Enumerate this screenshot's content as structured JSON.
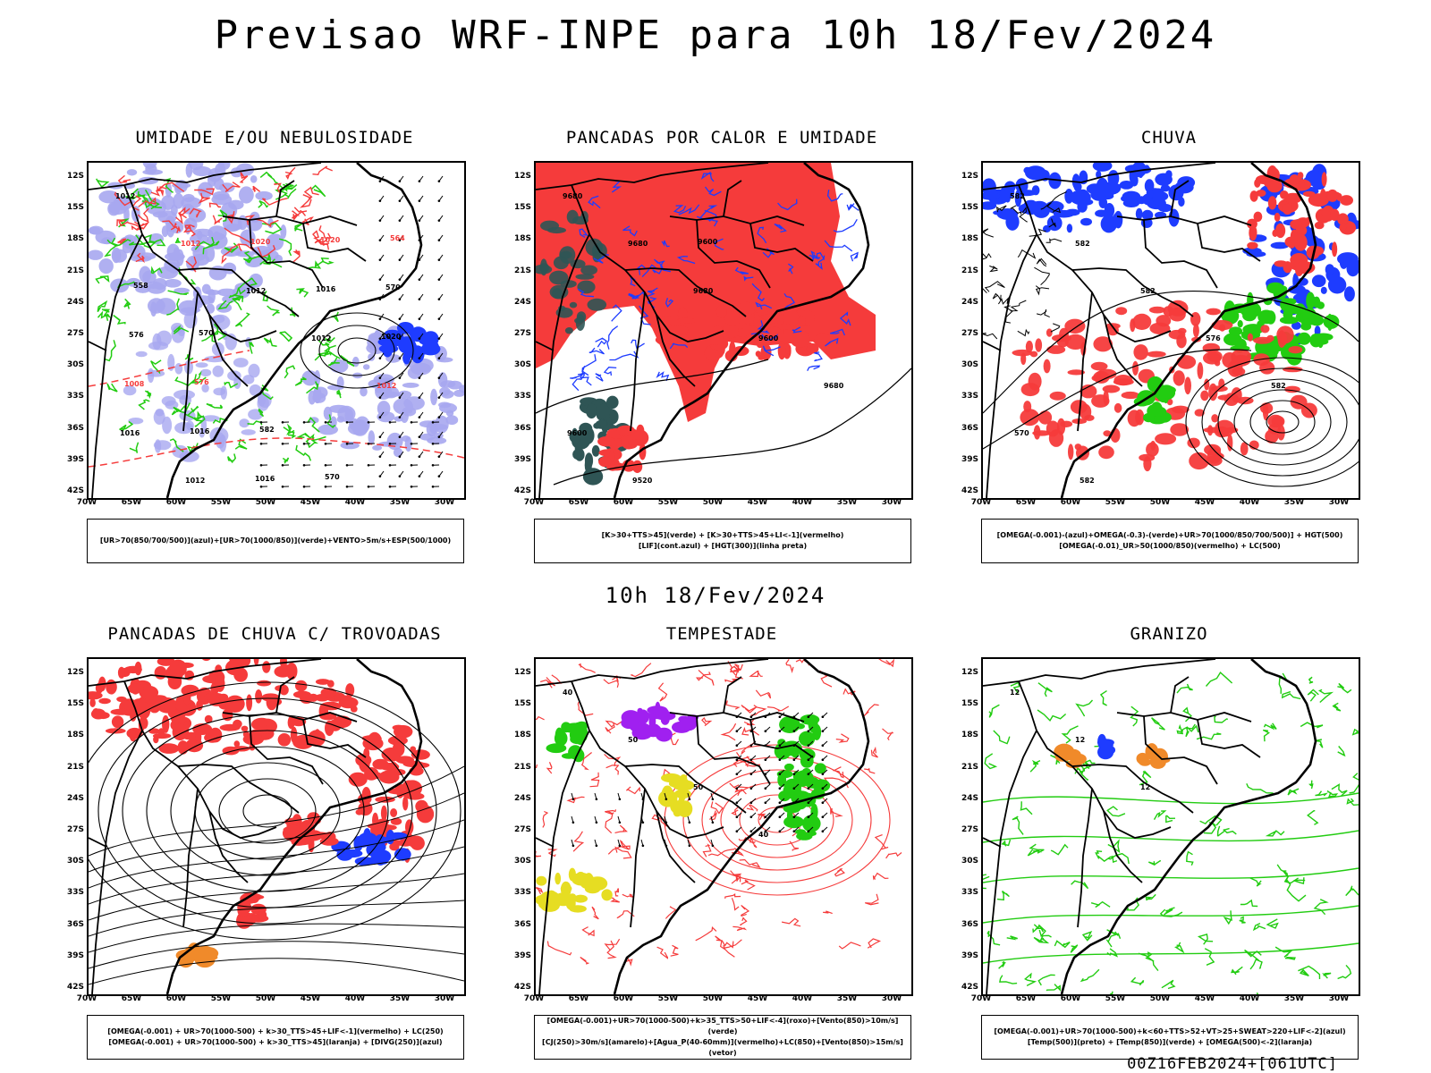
{
  "header": {
    "title": "Previsao WRF-INPE  para 10h 18/Fev/2024"
  },
  "middle_time": "10h 18/Fev/2024",
  "footer": "00Z16FEB2024+[061UTC]",
  "axes": {
    "lat_labels": [
      "12S",
      "15S",
      "18S",
      "21S",
      "24S",
      "27S",
      "30S",
      "33S",
      "36S",
      "39S",
      "42S"
    ],
    "lon_labels": [
      "70W",
      "65W",
      "60W",
      "55W",
      "50W",
      "45W",
      "40W",
      "35W",
      "30W"
    ]
  },
  "colors": {
    "blue": "#1e3cff",
    "lilac": "#a7a7f0",
    "green": "#22cc11",
    "red": "#f53b3b",
    "dark_teal": "#2f5555",
    "yellow": "#e6dd22",
    "purple": "#a020f0",
    "orange": "#f08a2a"
  },
  "panels": [
    {
      "title": "UMIDADE E/OU NEBULOSIDADE",
      "legend": [
        "[UR>70(850/700/500)](azul)+[UR>70(1000/850)](verde)+VENTO>5m/s+ESP(500/1000)"
      ],
      "labels": [
        "1012",
        "1012",
        "1012",
        "1012",
        "1012",
        "1016",
        "1012",
        "1020",
        "1016",
        "1020",
        "1008",
        "1016",
        "1016",
        "1020",
        "570",
        "576",
        "576",
        "582",
        "570",
        "564",
        "558",
        "570"
      ]
    },
    {
      "title": "PANCADAS POR CALOR E UMIDADE",
      "legend": [
        "[K>30+TTS>45](verde) + [K>30+TTS>45+LI<-1](vermelho)",
        "[LIF](cont.azul) + [HGT(300)](linha preta)"
      ],
      "labels": [
        "9680",
        "9680",
        "9680",
        "9600",
        "9680",
        "9600",
        "9520",
        "9600"
      ]
    },
    {
      "title": "CHUVA",
      "legend": [
        "[OMEGA(-0.001)-(azul)+OMEGA(-0.3)-(verde)+UR>70(1000/850/700/500)] + HGT(500)",
        "[OMEGA(-0.01)_UR>50(1000/850)(vermelho) + LC(500)"
      ],
      "labels": [
        "582",
        "582",
        "582",
        "576",
        "582",
        "570",
        "582"
      ]
    },
    {
      "title": "PANCADAS DE CHUVA C/ TROVOADAS",
      "legend": [
        "[OMEGA(-0.001) + UR>70(1000-500) + k>30_TTS>45+LIF<-1](vermelho) + LC(250)",
        "[OMEGA(-0.001) + UR>70(1000-500) + k>30_TTS>45](laranja) + [DIVG(250)](azul)"
      ],
      "labels": []
    },
    {
      "title": "TEMPESTADE",
      "legend": [
        "[OMEGA(-0.001)+UR>70(1000-500)+k>35_TTS>50+LIF<-4](roxo)+[Vento(850)>10m/s](verde)",
        "[CJ(250)>30m/s](amarelo)+[Agua_P(40-60mm)](vermelho)+LC(850)+[Vento(850)>15m/s](vetor)"
      ],
      "labels": [
        "40",
        "50",
        "50",
        "40"
      ]
    },
    {
      "title": "GRANIZO",
      "legend": [
        "[OMEGA(-0.001)+UR>70(1000-500)+k<60+TTS>52+VT>25+SWEAT>220+LIF<-2](azul)",
        "[Temp(500)](preto) + [Temp(850)](verde) + [OMEGA(500)<-2](laranja)"
      ],
      "labels": [
        "12",
        "12",
        "12"
      ]
    }
  ]
}
